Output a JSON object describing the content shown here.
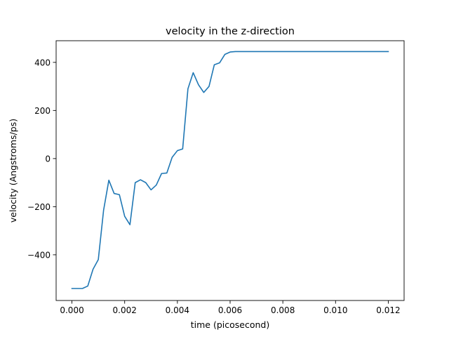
{
  "chart_data": {
    "type": "line",
    "title": "velocity in the z-direction",
    "xlabel": "time (picosecond)",
    "ylabel": "velocity (Angstroms/ps)",
    "xlim": [
      -0.0006,
      0.0126
    ],
    "ylim": [
      -590,
      490
    ],
    "xticks": [
      0.0,
      0.002,
      0.004,
      0.006,
      0.008,
      0.01,
      0.012
    ],
    "xtick_labels": [
      "0.000",
      "0.002",
      "0.004",
      "0.006",
      "0.008",
      "0.010",
      "0.012"
    ],
    "yticks": [
      -400,
      -200,
      0,
      200,
      400
    ],
    "ytick_labels": [
      "−400",
      "−200",
      "0",
      "200",
      "400"
    ],
    "grid": false,
    "series": [
      {
        "color": "#1f77b4",
        "x": [
          0.0,
          0.0002,
          0.0004,
          0.0006,
          0.0008,
          0.001,
          0.0012,
          0.0014,
          0.0016,
          0.0018,
          0.002,
          0.0022,
          0.0024,
          0.0026,
          0.0028,
          0.003,
          0.0032,
          0.0034,
          0.0036,
          0.0038,
          0.004,
          0.0042,
          0.0044,
          0.0046,
          0.0048,
          0.005,
          0.0052,
          0.0054,
          0.0056,
          0.0058,
          0.006,
          0.0062,
          0.0064,
          0.0066,
          0.0068,
          0.007,
          0.0072,
          0.0074,
          0.0076,
          0.0078,
          0.008,
          0.0082,
          0.0084,
          0.0086,
          0.0088,
          0.009,
          0.0092,
          0.0094,
          0.0096,
          0.0098,
          0.01,
          0.0102,
          0.0104,
          0.0106,
          0.0108,
          0.011,
          0.0112,
          0.0114,
          0.0116,
          0.0118,
          0.012
        ],
        "y": [
          -540,
          -540,
          -540,
          -530,
          -460,
          -420,
          -215,
          -90,
          -145,
          -150,
          -240,
          -275,
          -100,
          -88,
          -100,
          -130,
          -110,
          -62,
          -60,
          5,
          33,
          40,
          290,
          357,
          307,
          275,
          300,
          390,
          398,
          433,
          443,
          445,
          445,
          445,
          445,
          445,
          445,
          445,
          445,
          445,
          445,
          445,
          445,
          445,
          445,
          445,
          445,
          445,
          445,
          445,
          445,
          445,
          445,
          445,
          445,
          445,
          445,
          445,
          445,
          445,
          445
        ]
      }
    ]
  }
}
